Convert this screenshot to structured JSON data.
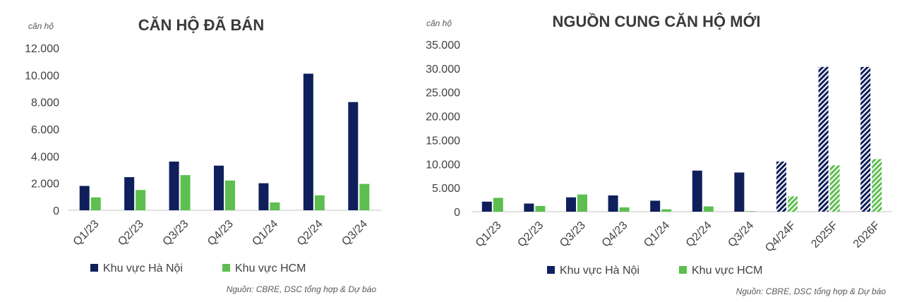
{
  "colors": {
    "hanoi": "#0f1f5c",
    "hcm": "#5cbf4f",
    "axis": "#d9d9d9",
    "text": "#404040"
  },
  "chart_data": [
    {
      "type": "bar",
      "title": "CĂN HỘ ĐÃ BÁN",
      "unit_label": "căn hộ",
      "categories": [
        "Q1/23",
        "Q2/23",
        "Q3/23",
        "Q4/23",
        "Q1/24",
        "Q2/24",
        "Q3/24"
      ],
      "series": [
        {
          "name": "Khu vực Hà Nội",
          "values": [
            1800,
            2450,
            3600,
            3300,
            2000,
            10100,
            8000
          ]
        },
        {
          "name": "Khu vực HCM",
          "values": [
            950,
            1500,
            2600,
            2200,
            580,
            1100,
            1950
          ]
        }
      ],
      "ylim": [
        0,
        12000
      ],
      "yticks": [
        0,
        2000,
        4000,
        6000,
        8000,
        10000,
        12000
      ],
      "ytick_labels": [
        "0",
        "2.000",
        "4.000",
        "6.000",
        "8.000",
        "10.000",
        "12.000"
      ],
      "legend": "bottom",
      "grid": false,
      "source": "Nguồn: CBRE, DSC tổng hợp & Dự báo"
    },
    {
      "type": "bar",
      "title": "NGUỒN CUNG CĂN HỘ MỚI",
      "unit_label": "căn hộ",
      "categories": [
        "Q1/23",
        "Q2/23",
        "Q3/23",
        "Q4/23",
        "Q1/24",
        "Q2/24",
        "Q3/24",
        "Q4/24F",
        "2025F",
        "2026F"
      ],
      "forecast_categories": [
        "Q4/24F",
        "2025F",
        "2026F"
      ],
      "series": [
        {
          "name": "Khu vực Hà Nội",
          "values": [
            2100,
            1700,
            3000,
            3400,
            2300,
            8600,
            8200,
            10500,
            30300,
            30300
          ]
        },
        {
          "name": "Khu vực HCM",
          "values": [
            2900,
            1200,
            3600,
            900,
            500,
            1100,
            100,
            3200,
            9700,
            11000
          ]
        }
      ],
      "ylim": [
        0,
        35000
      ],
      "yticks": [
        0,
        5000,
        10000,
        15000,
        20000,
        25000,
        30000,
        35000
      ],
      "ytick_labels": [
        "0",
        "5.000",
        "10.000",
        "15.000",
        "20.000",
        "25.000",
        "30.000",
        "35.000"
      ],
      "legend": "bottom",
      "grid": false,
      "source": "Nguồn: CBRE, DSC tổng hợp & Dự báo"
    }
  ]
}
